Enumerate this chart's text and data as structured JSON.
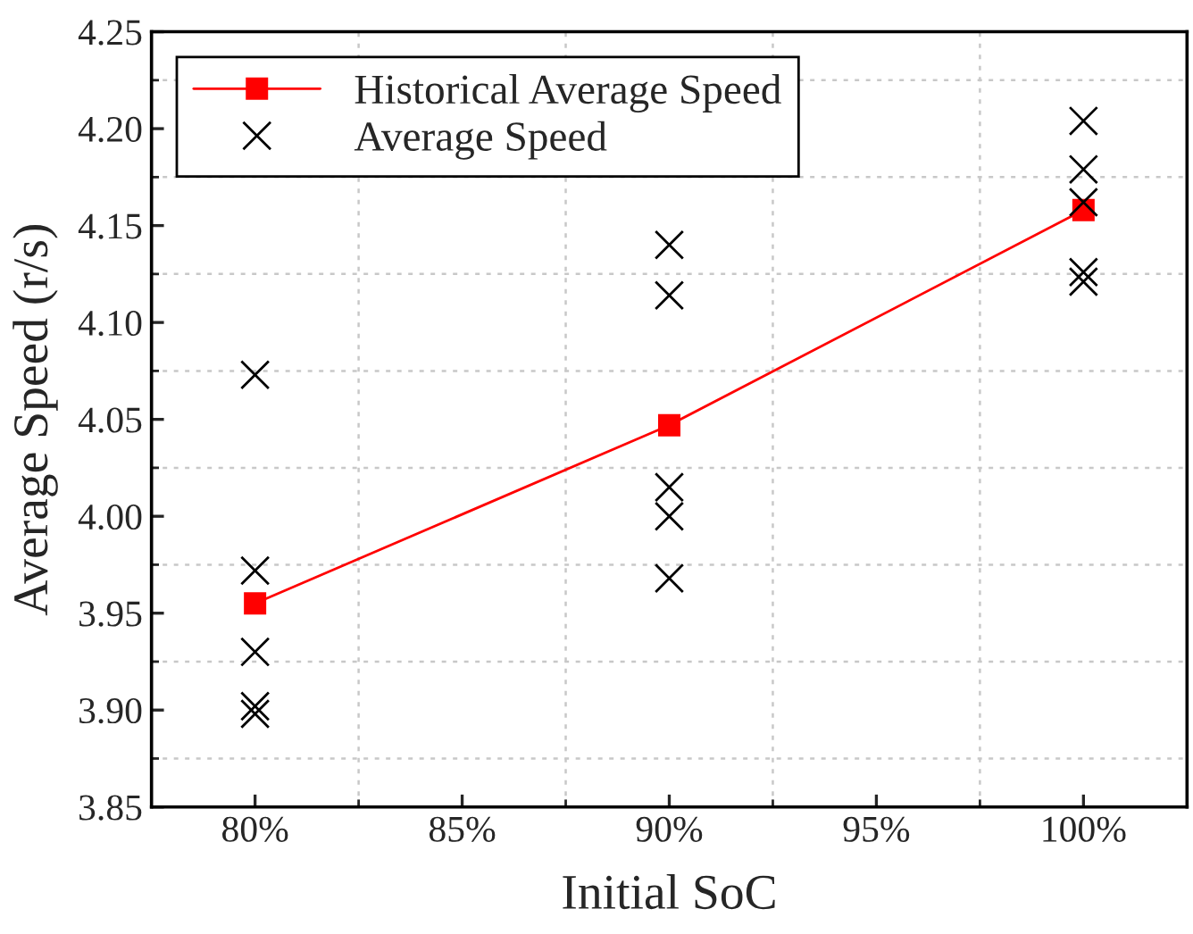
{
  "chart_data": {
    "type": "line",
    "xlabel": "Initial SoC",
    "ylabel": "Average Speed (r/s)",
    "xlim": [
      77.5,
      102.5
    ],
    "xticks": [
      {
        "value": 80,
        "label": "80%"
      },
      {
        "value": 85,
        "label": "85%"
      },
      {
        "value": 90,
        "label": "90%"
      },
      {
        "value": 95,
        "label": "95%"
      },
      {
        "value": 100,
        "label": "100%"
      }
    ],
    "ylim": [
      3.85,
      4.25
    ],
    "yticks": [
      {
        "value": 3.85,
        "label": "3.85"
      },
      {
        "value": 3.9,
        "label": "3.90"
      },
      {
        "value": 3.95,
        "label": "3.95"
      },
      {
        "value": 4.0,
        "label": "4.00"
      },
      {
        "value": 4.05,
        "label": "4.05"
      },
      {
        "value": 4.1,
        "label": "4.10"
      },
      {
        "value": 4.15,
        "label": "4.15"
      },
      {
        "value": 4.2,
        "label": "4.20"
      },
      {
        "value": 4.25,
        "label": "4.25"
      }
    ],
    "grid": true,
    "legend": "top left",
    "series": [
      {
        "name": "Historical Average Speed",
        "marker": "square",
        "line_style": "solid",
        "color": "#ff0000",
        "x": [
          80,
          90,
          100
        ],
        "values": [
          3.955,
          4.047,
          4.158
        ]
      },
      {
        "name": "Average Speed",
        "type": "scatter",
        "marker": "cross",
        "color": "#000000",
        "x": [
          80,
          80,
          80,
          80,
          80,
          90,
          90,
          90,
          90,
          90,
          100,
          100,
          100,
          100,
          100
        ],
        "values": [
          4.073,
          3.972,
          3.93,
          3.902,
          3.898,
          4.14,
          4.114,
          4.015,
          4.0,
          3.968,
          4.204,
          4.179,
          4.162,
          4.126,
          4.121
        ]
      }
    ]
  }
}
